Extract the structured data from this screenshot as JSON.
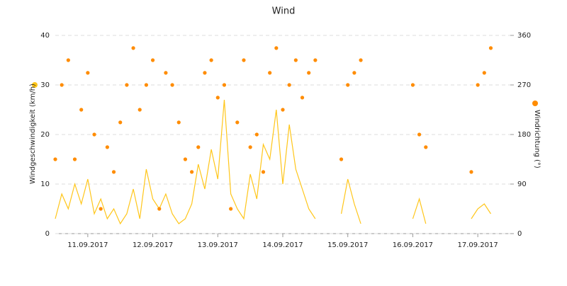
{
  "chart_data": {
    "type": "line-scatter",
    "title": "Wind",
    "x": [
      11.0,
      11.1,
      11.2,
      11.3,
      11.4,
      11.5,
      11.6,
      11.7,
      11.8,
      11.9,
      12.0,
      12.1,
      12.2,
      12.3,
      12.4,
      12.5,
      12.6,
      12.7,
      12.8,
      12.9,
      13.0,
      13.1,
      13.2,
      13.3,
      13.4,
      13.5,
      13.6,
      13.7,
      13.8,
      13.9,
      14.0,
      14.1,
      14.2,
      14.3,
      14.4,
      14.5,
      14.6,
      14.7,
      14.8,
      14.9,
      15.0,
      15.1,
      15.2,
      15.3,
      15.4,
      15.5,
      15.6,
      15.7,
      15.8,
      15.9,
      16.0,
      16.1,
      16.2,
      16.3,
      16.4,
      16.5,
      16.6,
      16.7,
      16.8,
      16.9,
      17.0,
      17.1,
      17.2,
      17.3,
      17.4,
      17.5,
      17.6,
      17.7,
      17.8,
      17.9
    ],
    "xlim": [
      11,
      18
    ],
    "xticks": [
      {
        "value": 11.5,
        "label": "11.09.2017"
      },
      {
        "value": 12.5,
        "label": "12.09.2017"
      },
      {
        "value": 13.5,
        "label": "13.09.2017"
      },
      {
        "value": 14.5,
        "label": "14.09.2017"
      },
      {
        "value": 15.5,
        "label": "15.09.2017"
      },
      {
        "value": 16.5,
        "label": "16.09.2017"
      },
      {
        "value": 17.5,
        "label": "17.09.2017"
      }
    ],
    "ylim": [
      0,
      40
    ],
    "yticks": [
      0,
      10,
      20,
      30,
      40
    ],
    "y2lim": [
      0,
      360
    ],
    "y2ticks": [
      0,
      90,
      180,
      270,
      360
    ],
    "grid": true,
    "series": [
      {
        "name": "Windgeschwindigkeit (km/h)",
        "color": "#ffc61a",
        "kind": "line",
        "values": [
          3,
          8,
          5,
          10,
          6,
          11,
          4,
          7,
          3,
          5,
          2,
          4,
          9,
          3,
          13,
          7,
          5,
          8,
          4,
          2,
          3,
          6,
          14,
          9,
          17,
          11,
          27,
          8,
          5,
          3,
          12,
          7,
          18,
          15,
          25,
          10,
          22,
          13,
          9,
          5,
          3,
          null,
          null,
          null,
          4,
          11,
          6,
          2,
          null,
          null,
          null,
          null,
          null,
          null,
          null,
          3,
          7,
          2,
          null,
          null,
          null,
          null,
          null,
          null,
          3,
          5,
          6,
          4,
          null,
          null
        ]
      },
      {
        "name": "Windrichtung (°)",
        "color": "#ff8c00",
        "kind": "scatter",
        "axis": "y2",
        "values": [
          135,
          270,
          315,
          135,
          225,
          292,
          180,
          45,
          157,
          112,
          202,
          270,
          337,
          225,
          270,
          315,
          45,
          292,
          270,
          202,
          135,
          112,
          157,
          292,
          315,
          247,
          270,
          45,
          202,
          315,
          157,
          180,
          112,
          292,
          337,
          225,
          270,
          315,
          247,
          292,
          315,
          null,
          null,
          null,
          135,
          270,
          292,
          315,
          null,
          null,
          null,
          null,
          null,
          null,
          null,
          270,
          180,
          157,
          null,
          null,
          null,
          null,
          null,
          null,
          112,
          270,
          292,
          337,
          null,
          null
        ]
      }
    ]
  }
}
